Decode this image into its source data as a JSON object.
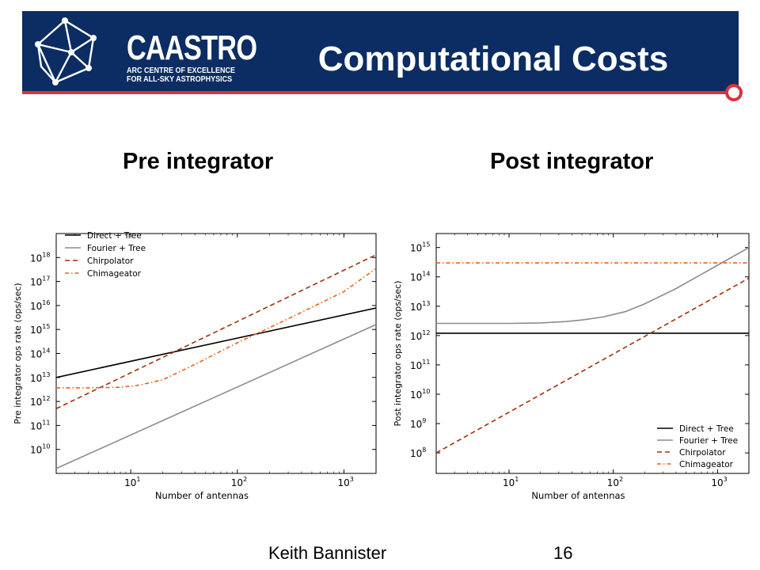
{
  "header": {
    "logo_name": "CAASTRO",
    "logo_sub_1": "ARC CENTRE OF EXCELLENCE",
    "logo_sub_2": "FOR ALL-SKY ASTROPHYSICS",
    "title": "Computational Costs"
  },
  "panels": {
    "left_title": "Pre integrator",
    "right_title": "Post integrator"
  },
  "footer": {
    "author": "Keith Bannister",
    "page": "16"
  },
  "colors": {
    "header_bg": "#0c2d63",
    "accent_red": "#d8333c",
    "direct_tree": "#000000",
    "fourier_tree": "#8c8c8c",
    "chirpolator": "#a0300c",
    "chimageator": "#e8621a"
  },
  "chart_data": [
    {
      "type": "line",
      "xscale": "log",
      "yscale": "log",
      "xlabel": "Number of antennas",
      "ylabel": "Pre integrator ops rate (ops/sec)",
      "xlim": [
        2,
        2000
      ],
      "ylim": [
        1000000000.0,
        1e+19
      ],
      "x_ticks": [
        {
          "value": 10,
          "base": "10",
          "exp": "1"
        },
        {
          "value": 100,
          "base": "10",
          "exp": "2"
        },
        {
          "value": 1000,
          "base": "10",
          "exp": "3"
        }
      ],
      "y_ticks": [
        {
          "value": 10000000000.0,
          "base": "10",
          "exp": "10"
        },
        {
          "value": 100000000000.0,
          "base": "10",
          "exp": "11"
        },
        {
          "value": 1000000000000.0,
          "base": "10",
          "exp": "12"
        },
        {
          "value": 10000000000000.0,
          "base": "10",
          "exp": "13"
        },
        {
          "value": 100000000000000.0,
          "base": "10",
          "exp": "14"
        },
        {
          "value": 1000000000000000.0,
          "base": "10",
          "exp": "15"
        },
        {
          "value": 1e+16,
          "base": "10",
          "exp": "16"
        },
        {
          "value": 1e+17,
          "base": "10",
          "exp": "17"
        },
        {
          "value": 1e+18,
          "base": "10",
          "exp": "18"
        }
      ],
      "legend": "top-left",
      "series": [
        {
          "name": "Direct + Tree",
          "style": "solid",
          "color": "#000000",
          "x": [
            2,
            2000
          ],
          "y": [
            10000000000000.0,
            7900000000000000.0
          ]
        },
        {
          "name": "Fourier + Tree",
          "style": "solid",
          "color": "#8c8c8c",
          "x": [
            2,
            2000
          ],
          "y": [
            1600000000.0,
            1600000000000000.0
          ]
        },
        {
          "name": "Chirpolator",
          "style": "dashed",
          "color": "#a0300c",
          "x": [
            2,
            2000
          ],
          "y": [
            500000000000.0,
            1.3e+18
          ]
        },
        {
          "name": "Chimageator",
          "style": "dashdot",
          "color": "#e8621a",
          "x": [
            2,
            4,
            8,
            12,
            20,
            40,
            100,
            300,
            1000,
            2000
          ],
          "y": [
            3700000000000.0,
            3700000000000.0,
            3900000000000.0,
            4800000000000.0,
            8000000000000.0,
            35000000000000.0,
            280000000000000.0,
            2800000000000000.0,
            3.8e+16,
            3.5e+17
          ]
        }
      ]
    },
    {
      "type": "line",
      "xscale": "log",
      "yscale": "log",
      "xlabel": "Number of antennas",
      "ylabel": "Post integrator ops rate (ops/sec)",
      "xlim": [
        2,
        2000
      ],
      "ylim": [
        20000000.0,
        3000000000000000.0
      ],
      "x_ticks": [
        {
          "value": 10,
          "base": "10",
          "exp": "1"
        },
        {
          "value": 100,
          "base": "10",
          "exp": "2"
        },
        {
          "value": 1000,
          "base": "10",
          "exp": "3"
        }
      ],
      "y_ticks": [
        {
          "value": 100000000.0,
          "base": "10",
          "exp": "8"
        },
        {
          "value": 1000000000.0,
          "base": "10",
          "exp": "9"
        },
        {
          "value": 10000000000.0,
          "base": "10",
          "exp": "10"
        },
        {
          "value": 100000000000.0,
          "base": "10",
          "exp": "11"
        },
        {
          "value": 1000000000000.0,
          "base": "10",
          "exp": "12"
        },
        {
          "value": 10000000000000.0,
          "base": "10",
          "exp": "13"
        },
        {
          "value": 100000000000000.0,
          "base": "10",
          "exp": "14"
        },
        {
          "value": 1000000000000000.0,
          "base": "10",
          "exp": "15"
        }
      ],
      "legend": "bottom-right",
      "series": [
        {
          "name": "Direct + Tree",
          "style": "solid",
          "color": "#000000",
          "x": [
            2,
            2000
          ],
          "y": [
            1200000000000.0,
            1200000000000.0
          ]
        },
        {
          "name": "Fourier + Tree",
          "style": "solid",
          "color": "#8c8c8c",
          "x": [
            2,
            10,
            20,
            35,
            50,
            80,
            130,
            200,
            400,
            1000,
            2000
          ],
          "y": [
            2600000000000.0,
            2600000000000.0,
            2700000000000.0,
            3000000000000.0,
            3400000000000.0,
            4300000000000.0,
            6500000000000.0,
            12000000000000.0,
            40000000000000.0,
            250000000000000.0,
            1000000000000000.0
          ]
        },
        {
          "name": "Chirpolator",
          "style": "dashed",
          "color": "#a0300c",
          "x": [
            2,
            2000
          ],
          "y": [
            100000000.0,
            90000000000000.0
          ]
        },
        {
          "name": "Chimageator",
          "style": "dashdot",
          "color": "#e8621a",
          "x": [
            2,
            2000
          ],
          "y": [
            300000000000000.0,
            300000000000000.0
          ]
        }
      ]
    }
  ]
}
